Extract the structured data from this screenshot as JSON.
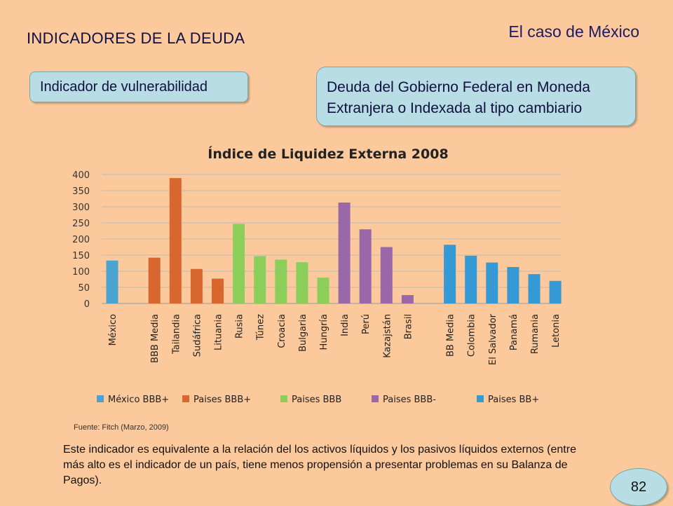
{
  "header": {
    "title": "INDICADORES DE LA DEUDA",
    "case": "El caso de México"
  },
  "callouts": {
    "indicator": "Indicador de vulnerabilidad",
    "debt_line1": "Deuda del Gobierno Federal en Moneda",
    "debt_line2": "Extranjera o Indexada al tipo cambiario"
  },
  "colors": {
    "background": "#FBC99B",
    "callout": "#B8DDE5",
    "mexico": "#4BA3D0",
    "bbb_plus": "#D8662F",
    "bbb": "#8CCE5A",
    "bbb_minus": "#9A68A8",
    "bb_plus": "#3599D6"
  },
  "chart_data": {
    "type": "bar",
    "title": "Índice de Liquidez Externa 2008",
    "ylim": [
      0,
      400
    ],
    "yticks": [
      0,
      50,
      100,
      150,
      200,
      250,
      300,
      350,
      400
    ],
    "grid": true,
    "legend_position": "bottom",
    "categories": [
      "México",
      "BBB Media",
      "Tailandia",
      "Sudáfrica",
      "Lituania",
      "Rusia",
      "Túnez",
      "Croacia",
      "Bulgaria",
      "Hungría",
      "India",
      "Perú",
      "Kazajstán",
      "Brasil",
      "BB Media",
      "Colombia",
      "El Salvador",
      "Panamá",
      "Rumania",
      "Letonia"
    ],
    "series": [
      {
        "name": "México BBB+",
        "color": "#4BA3D0",
        "points": [
          {
            "category": "México",
            "value": 133
          }
        ]
      },
      {
        "name": "Paises BBB+",
        "color": "#D8662F",
        "points": [
          {
            "category": "BBB Media",
            "value": 142
          },
          {
            "category": "Tailandia",
            "value": 389
          },
          {
            "category": "Sudáfrica",
            "value": 107
          },
          {
            "category": "Lituania",
            "value": 77
          }
        ]
      },
      {
        "name": "Paises BBB",
        "color": "#8CCE5A",
        "points": [
          {
            "category": "Rusia",
            "value": 247
          },
          {
            "category": "Túnez",
            "value": 147
          },
          {
            "category": "Croacia",
            "value": 136
          },
          {
            "category": "Bulgaria",
            "value": 128
          },
          {
            "category": "Hungría",
            "value": 80
          }
        ]
      },
      {
        "name": "Paises BBB-",
        "color": "#9A68A8",
        "points": [
          {
            "category": "India",
            "value": 313
          },
          {
            "category": "Perú",
            "value": 230
          },
          {
            "category": "Kazajstán",
            "value": 175
          },
          {
            "category": "Brasil",
            "value": 26
          }
        ]
      },
      {
        "name": "Paises BB+",
        "color": "#3599D6",
        "points": [
          {
            "category": "BB Media",
            "value": 182
          },
          {
            "category": "Colombia",
            "value": 148
          },
          {
            "category": "El Salvador",
            "value": 127
          },
          {
            "category": "Panamá",
            "value": 113
          },
          {
            "category": "Rumania",
            "value": 91
          },
          {
            "category": "Letonia",
            "value": 70
          }
        ]
      }
    ]
  },
  "footer": {
    "source": "Fuente: Fitch (Marzo, 2009)",
    "description": "Este indicador es equivalente a la relación del los activos líquidos y los pasivos líquidos externos (entre más alto es el indicador de un país, tiene menos propensión a presentar problemas en su Balanza de Pagos).",
    "page_number": "82"
  }
}
